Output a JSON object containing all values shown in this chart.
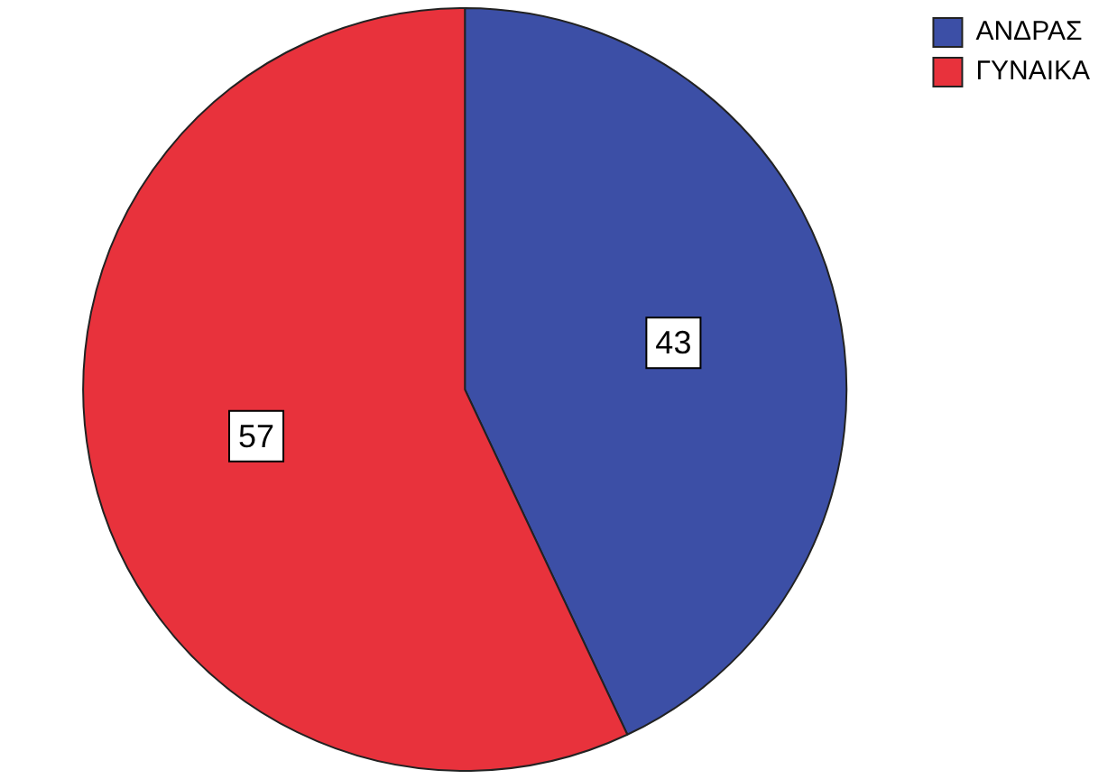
{
  "chart_data": {
    "type": "pie",
    "categories": [
      "ΑΝΔΡΑΣ",
      "ΓΥΝΑΙΚΑ"
    ],
    "values": [
      43,
      57
    ],
    "colors": [
      "#3c4fa6",
      "#e8323c"
    ],
    "data_labels": true,
    "legend": "top right"
  }
}
